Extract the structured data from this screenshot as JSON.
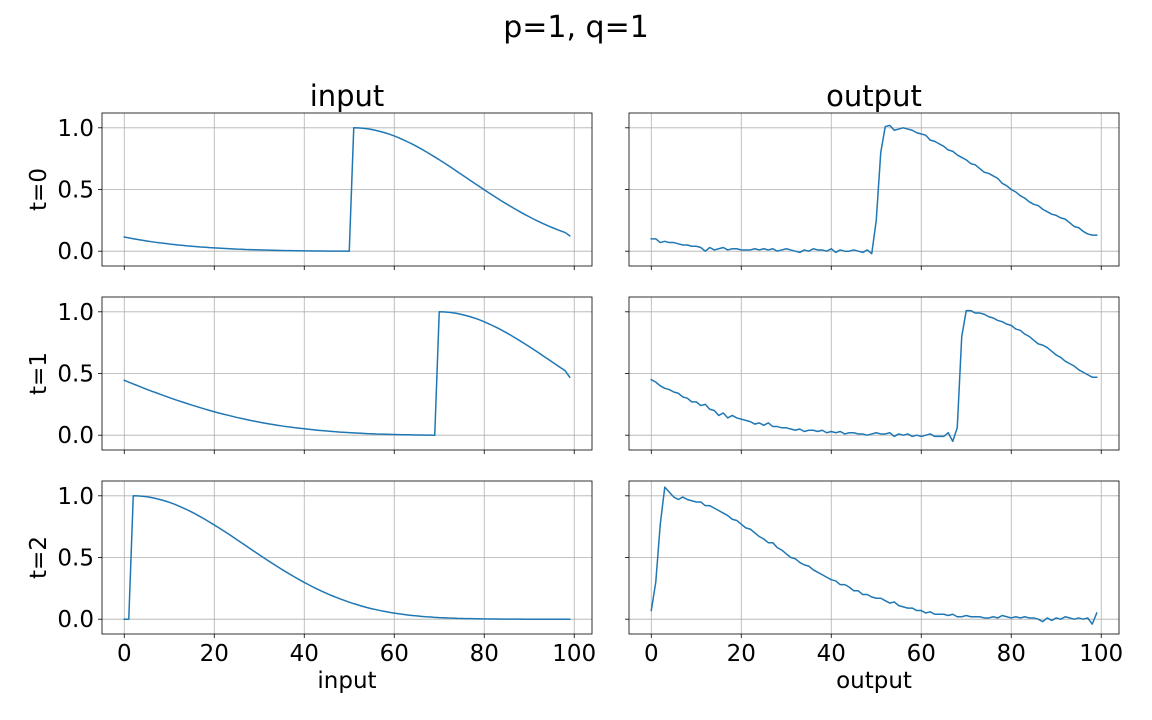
{
  "figure": {
    "suptitle": "p=1, q=1",
    "line_color": "#1f77b4"
  },
  "chart_data": [
    {
      "type": "line",
      "row": 0,
      "col": 0,
      "title": "input",
      "xlabel": "",
      "ylabel": "t=0",
      "x_start": 0,
      "x_step": 1,
      "xlim": [
        -4.95,
        103.95
      ],
      "ylim": [
        -0.12,
        1.12
      ],
      "xticks": [
        0,
        20,
        40,
        60,
        80,
        100
      ],
      "yticks": [
        0.0,
        0.5,
        1.0
      ],
      "show_xticklabels": false,
      "show_yticklabels": true,
      "ytick_labels": [
        "0.0",
        "0.5",
        "1.0"
      ],
      "grid": true,
      "values": [
        0.115,
        0.108,
        0.101,
        0.095,
        0.089,
        0.083,
        0.077,
        0.072,
        0.067,
        0.063,
        0.058,
        0.054,
        0.05,
        0.047,
        0.043,
        0.04,
        0.037,
        0.034,
        0.032,
        0.029,
        0.027,
        0.025,
        0.023,
        0.021,
        0.019,
        0.017,
        0.016,
        0.014,
        0.013,
        0.012,
        0.011,
        0.01,
        0.009,
        0.008,
        0.007,
        0.006,
        0.005,
        0.005,
        0.004,
        0.004,
        0.003,
        0.003,
        0.002,
        0.002,
        0.002,
        0.001,
        0.001,
        0.001,
        0.001,
        0.001,
        0.0,
        1.0,
        0.999,
        0.996,
        0.992,
        0.986,
        0.978,
        0.969,
        0.959,
        0.947,
        0.934,
        0.919,
        0.903,
        0.886,
        0.868,
        0.849,
        0.829,
        0.808,
        0.786,
        0.764,
        0.741,
        0.718,
        0.694,
        0.67,
        0.645,
        0.621,
        0.596,
        0.571,
        0.547,
        0.522,
        0.498,
        0.474,
        0.45,
        0.427,
        0.404,
        0.382,
        0.36,
        0.339,
        0.318,
        0.298,
        0.279,
        0.26,
        0.242,
        0.225,
        0.209,
        0.193,
        0.178,
        0.164,
        0.151,
        0.125
      ]
    },
    {
      "type": "line",
      "row": 0,
      "col": 1,
      "title": "output",
      "xlabel": "",
      "ylabel": "",
      "x_start": 0,
      "x_step": 1,
      "xlim": [
        -4.95,
        103.95
      ],
      "ylim": [
        -0.12,
        1.12
      ],
      "xticks": [
        0,
        20,
        40,
        60,
        80,
        100
      ],
      "yticks": [
        0.0,
        0.5,
        1.0
      ],
      "show_xticklabels": false,
      "show_yticklabels": false,
      "grid": true,
      "values": [
        0.1,
        0.1,
        0.07,
        0.08,
        0.07,
        0.07,
        0.06,
        0.05,
        0.05,
        0.04,
        0.04,
        0.03,
        0.0,
        0.03,
        0.01,
        0.02,
        0.03,
        0.01,
        0.02,
        0.02,
        0.01,
        0.01,
        0.01,
        0.02,
        0.01,
        0.02,
        0.01,
        0.02,
        0.0,
        0.01,
        0.02,
        0.01,
        0.0,
        -0.01,
        0.01,
        0.0,
        0.02,
        0.01,
        0.01,
        0.0,
        0.02,
        -0.01,
        0.01,
        0.0,
        0.0,
        0.01,
        0.0,
        -0.01,
        0.01,
        -0.02,
        0.25,
        0.8,
        1.01,
        1.02,
        0.98,
        0.99,
        1.0,
        0.99,
        0.98,
        0.96,
        0.95,
        0.94,
        0.9,
        0.89,
        0.87,
        0.85,
        0.82,
        0.81,
        0.78,
        0.76,
        0.74,
        0.71,
        0.7,
        0.67,
        0.64,
        0.63,
        0.61,
        0.59,
        0.55,
        0.53,
        0.5,
        0.48,
        0.45,
        0.43,
        0.4,
        0.38,
        0.37,
        0.34,
        0.32,
        0.3,
        0.29,
        0.27,
        0.26,
        0.23,
        0.2,
        0.19,
        0.16,
        0.14,
        0.13,
        0.13
      ]
    },
    {
      "type": "line",
      "row": 1,
      "col": 0,
      "title": "",
      "xlabel": "",
      "ylabel": "t=1",
      "x_start": 0,
      "x_step": 1,
      "xlim": [
        -4.95,
        103.95
      ],
      "ylim": [
        -0.12,
        1.12
      ],
      "xticks": [
        0,
        20,
        40,
        60,
        80,
        100
      ],
      "yticks": [
        0.0,
        0.5,
        1.0
      ],
      "show_xticklabels": false,
      "show_yticklabels": true,
      "ytick_labels": [
        "0.0",
        "0.5",
        "1.0"
      ],
      "grid": true,
      "values": [
        0.445,
        0.43,
        0.415,
        0.401,
        0.386,
        0.372,
        0.358,
        0.345,
        0.331,
        0.318,
        0.305,
        0.292,
        0.28,
        0.268,
        0.256,
        0.244,
        0.233,
        0.222,
        0.211,
        0.2,
        0.19,
        0.18,
        0.171,
        0.162,
        0.153,
        0.144,
        0.136,
        0.128,
        0.12,
        0.113,
        0.106,
        0.099,
        0.093,
        0.087,
        0.081,
        0.075,
        0.07,
        0.065,
        0.06,
        0.056,
        0.052,
        0.048,
        0.044,
        0.04,
        0.037,
        0.034,
        0.031,
        0.028,
        0.025,
        0.023,
        0.021,
        0.019,
        0.017,
        0.015,
        0.013,
        0.012,
        0.01,
        0.009,
        0.008,
        0.007,
        0.006,
        0.005,
        0.004,
        0.004,
        0.003,
        0.002,
        0.002,
        0.001,
        0.001,
        0.0,
        1.0,
        0.999,
        0.996,
        0.992,
        0.986,
        0.978,
        0.969,
        0.959,
        0.947,
        0.934,
        0.919,
        0.903,
        0.886,
        0.868,
        0.849,
        0.829,
        0.808,
        0.786,
        0.764,
        0.741,
        0.718,
        0.694,
        0.67,
        0.645,
        0.621,
        0.596,
        0.571,
        0.547,
        0.522,
        0.47
      ]
    },
    {
      "type": "line",
      "row": 1,
      "col": 1,
      "title": "",
      "xlabel": "",
      "ylabel": "",
      "x_start": 0,
      "x_step": 1,
      "xlim": [
        -4.95,
        103.95
      ],
      "ylim": [
        -0.12,
        1.12
      ],
      "xticks": [
        0,
        20,
        40,
        60,
        80,
        100
      ],
      "yticks": [
        0.0,
        0.5,
        1.0
      ],
      "show_xticklabels": false,
      "show_yticklabels": false,
      "grid": true,
      "values": [
        0.45,
        0.43,
        0.4,
        0.38,
        0.37,
        0.35,
        0.34,
        0.31,
        0.3,
        0.27,
        0.27,
        0.24,
        0.25,
        0.21,
        0.2,
        0.16,
        0.18,
        0.14,
        0.16,
        0.14,
        0.13,
        0.12,
        0.11,
        0.09,
        0.1,
        0.08,
        0.1,
        0.07,
        0.07,
        0.06,
        0.06,
        0.05,
        0.04,
        0.05,
        0.03,
        0.04,
        0.04,
        0.03,
        0.04,
        0.02,
        0.03,
        0.02,
        0.03,
        0.01,
        0.02,
        0.02,
        0.01,
        0.01,
        0.0,
        0.01,
        0.02,
        0.01,
        0.01,
        0.02,
        -0.01,
        0.01,
        0.0,
        0.01,
        -0.01,
        0.0,
        -0.01,
        0.0,
        0.01,
        -0.01,
        -0.01,
        -0.01,
        0.02,
        -0.05,
        0.06,
        0.8,
        1.01,
        1.01,
        0.99,
        0.99,
        0.98,
        0.96,
        0.95,
        0.93,
        0.92,
        0.9,
        0.89,
        0.86,
        0.85,
        0.82,
        0.8,
        0.77,
        0.74,
        0.73,
        0.71,
        0.68,
        0.65,
        0.63,
        0.6,
        0.58,
        0.56,
        0.53,
        0.51,
        0.49,
        0.47,
        0.47
      ]
    },
    {
      "type": "line",
      "row": 2,
      "col": 0,
      "title": "",
      "xlabel": "input",
      "ylabel": "t=2",
      "x_start": 0,
      "x_step": 1,
      "xlim": [
        -4.95,
        103.95
      ],
      "ylim": [
        -0.12,
        1.12
      ],
      "xticks": [
        0,
        20,
        40,
        60,
        80,
        100
      ],
      "yticks": [
        0.0,
        0.5,
        1.0
      ],
      "show_xticklabels": true,
      "show_yticklabels": true,
      "xtick_labels": [
        "0",
        "20",
        "40",
        "60",
        "80",
        "100"
      ],
      "ytick_labels": [
        "0.0",
        "0.5",
        "1.0"
      ],
      "grid": true,
      "values": [
        0.0,
        0.0,
        1.0,
        0.999,
        0.996,
        0.992,
        0.986,
        0.978,
        0.969,
        0.959,
        0.947,
        0.934,
        0.919,
        0.903,
        0.886,
        0.868,
        0.849,
        0.829,
        0.808,
        0.786,
        0.764,
        0.741,
        0.718,
        0.694,
        0.67,
        0.645,
        0.621,
        0.596,
        0.571,
        0.547,
        0.522,
        0.498,
        0.474,
        0.45,
        0.427,
        0.404,
        0.382,
        0.36,
        0.339,
        0.318,
        0.298,
        0.279,
        0.26,
        0.242,
        0.225,
        0.209,
        0.193,
        0.178,
        0.164,
        0.151,
        0.138,
        0.126,
        0.115,
        0.104,
        0.094,
        0.085,
        0.077,
        0.069,
        0.062,
        0.055,
        0.049,
        0.044,
        0.039,
        0.034,
        0.03,
        0.027,
        0.023,
        0.02,
        0.018,
        0.015,
        0.013,
        0.012,
        0.01,
        0.009,
        0.007,
        0.006,
        0.005,
        0.005,
        0.004,
        0.003,
        0.003,
        0.002,
        0.002,
        0.002,
        0.001,
        0.001,
        0.001,
        0.001,
        0.001,
        0.0,
        0.0,
        0.0,
        0.0,
        0.0,
        0.0,
        0.0,
        0.0,
        0.0,
        0.0,
        0.0
      ]
    },
    {
      "type": "line",
      "row": 2,
      "col": 1,
      "title": "",
      "xlabel": "output",
      "ylabel": "",
      "x_start": 0,
      "x_step": 1,
      "xlim": [
        -4.95,
        103.95
      ],
      "ylim": [
        -0.12,
        1.12
      ],
      "xticks": [
        0,
        20,
        40,
        60,
        80,
        100
      ],
      "yticks": [
        0.0,
        0.5,
        1.0
      ],
      "show_xticklabels": true,
      "show_yticklabels": false,
      "xtick_labels": [
        "0",
        "20",
        "40",
        "60",
        "80",
        "100"
      ],
      "grid": true,
      "values": [
        0.07,
        0.3,
        0.77,
        1.07,
        1.03,
        0.99,
        0.97,
        0.99,
        0.97,
        0.96,
        0.95,
        0.95,
        0.92,
        0.92,
        0.9,
        0.88,
        0.86,
        0.84,
        0.81,
        0.8,
        0.77,
        0.74,
        0.73,
        0.7,
        0.67,
        0.65,
        0.62,
        0.62,
        0.58,
        0.56,
        0.53,
        0.5,
        0.49,
        0.46,
        0.44,
        0.43,
        0.4,
        0.38,
        0.36,
        0.34,
        0.32,
        0.31,
        0.28,
        0.28,
        0.26,
        0.23,
        0.23,
        0.2,
        0.2,
        0.18,
        0.17,
        0.17,
        0.15,
        0.13,
        0.14,
        0.11,
        0.1,
        0.09,
        0.09,
        0.07,
        0.07,
        0.05,
        0.06,
        0.04,
        0.04,
        0.04,
        0.03,
        0.04,
        0.02,
        0.02,
        0.03,
        0.02,
        0.02,
        0.02,
        0.01,
        0.01,
        0.02,
        0.01,
        0.03,
        0.02,
        0.01,
        0.02,
        0.01,
        0.02,
        0.01,
        0.01,
        0.0,
        -0.02,
        0.01,
        -0.01,
        0.01,
        0.0,
        0.02,
        0.01,
        0.0,
        0.01,
        0.0,
        0.01,
        -0.04,
        0.05
      ]
    }
  ]
}
